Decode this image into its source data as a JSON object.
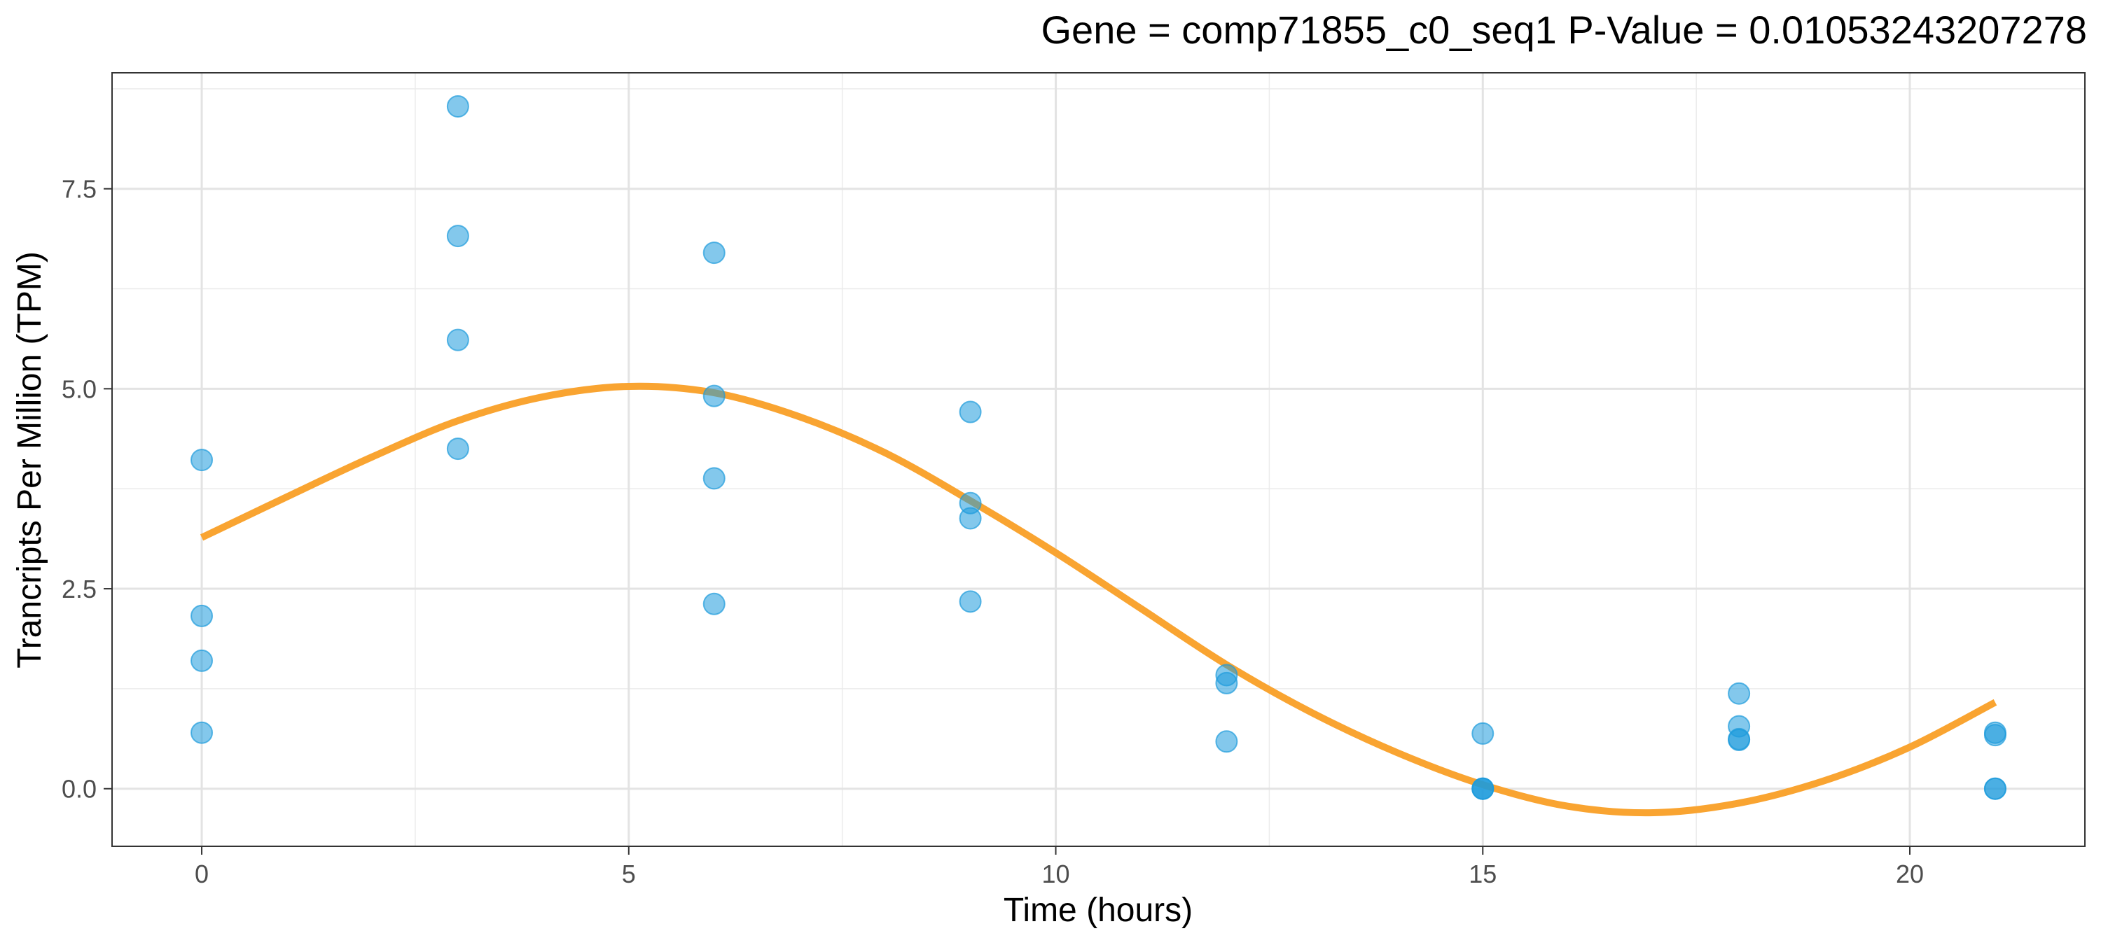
{
  "chart_data": {
    "type": "scatter",
    "title": "Gene =  comp71855_c0_seq1  P-Value =  0.01053243207278",
    "xlabel": "Time (hours)",
    "ylabel": "Trancripts Per Million (TPM)",
    "xlim": [
      -1.05,
      22.05
    ],
    "ylim": [
      -0.72,
      8.95
    ],
    "x_ticks": [
      0,
      5,
      10,
      15,
      20
    ],
    "x_tick_labels": [
      "0",
      "5",
      "10",
      "15",
      "20"
    ],
    "y_ticks": [
      0.0,
      2.5,
      5.0,
      7.5
    ],
    "y_tick_labels": [
      "0.0",
      "2.5",
      "5.0",
      "7.5"
    ],
    "grid": true,
    "series": [
      {
        "kind": "points",
        "color": "#1e9bdc",
        "points": [
          {
            "x": 0,
            "y": 4.11
          },
          {
            "x": 0,
            "y": 2.16
          },
          {
            "x": 0,
            "y": 1.6
          },
          {
            "x": 0,
            "y": 0.7
          },
          {
            "x": 3,
            "y": 8.53
          },
          {
            "x": 3,
            "y": 6.91
          },
          {
            "x": 3,
            "y": 5.61
          },
          {
            "x": 3,
            "y": 4.25
          },
          {
            "x": 6,
            "y": 6.7
          },
          {
            "x": 6,
            "y": 4.91
          },
          {
            "x": 6,
            "y": 3.88
          },
          {
            "x": 6,
            "y": 2.31
          },
          {
            "x": 9,
            "y": 4.71
          },
          {
            "x": 9,
            "y": 3.57
          },
          {
            "x": 9,
            "y": 3.38
          },
          {
            "x": 9,
            "y": 2.34
          },
          {
            "x": 12,
            "y": 1.42
          },
          {
            "x": 12,
            "y": 1.32
          },
          {
            "x": 12,
            "y": 0.59
          },
          {
            "x": 15,
            "y": 0.69
          },
          {
            "x": 15,
            "y": 0.0
          },
          {
            "x": 15,
            "y": 0.0
          },
          {
            "x": 15,
            "y": 0.0
          },
          {
            "x": 18,
            "y": 1.19
          },
          {
            "x": 18,
            "y": 0.78
          },
          {
            "x": 18,
            "y": 0.62
          },
          {
            "x": 18,
            "y": 0.61
          },
          {
            "x": 21,
            "y": 0.7
          },
          {
            "x": 21,
            "y": 0.67
          },
          {
            "x": 21,
            "y": 0.0
          },
          {
            "x": 21,
            "y": 0.0
          }
        ]
      },
      {
        "kind": "curve",
        "color": "#f9a431",
        "points": [
          {
            "x": 0,
            "y": 3.14
          },
          {
            "x": 1,
            "y": 3.65
          },
          {
            "x": 2,
            "y": 4.15
          },
          {
            "x": 3,
            "y": 4.6
          },
          {
            "x": 4,
            "y": 4.9
          },
          {
            "x": 5,
            "y": 5.03
          },
          {
            "x": 6,
            "y": 4.95
          },
          {
            "x": 7,
            "y": 4.65
          },
          {
            "x": 8,
            "y": 4.2
          },
          {
            "x": 9,
            "y": 3.6
          },
          {
            "x": 10,
            "y": 2.95
          },
          {
            "x": 11,
            "y": 2.25
          },
          {
            "x": 12,
            "y": 1.55
          },
          {
            "x": 13,
            "y": 0.95
          },
          {
            "x": 14,
            "y": 0.45
          },
          {
            "x": 15,
            "y": 0.05
          },
          {
            "x": 16,
            "y": -0.22
          },
          {
            "x": 17,
            "y": -0.3
          },
          {
            "x": 18,
            "y": -0.18
          },
          {
            "x": 19,
            "y": 0.1
          },
          {
            "x": 20,
            "y": 0.52
          },
          {
            "x": 21,
            "y": 1.08
          }
        ]
      }
    ]
  }
}
